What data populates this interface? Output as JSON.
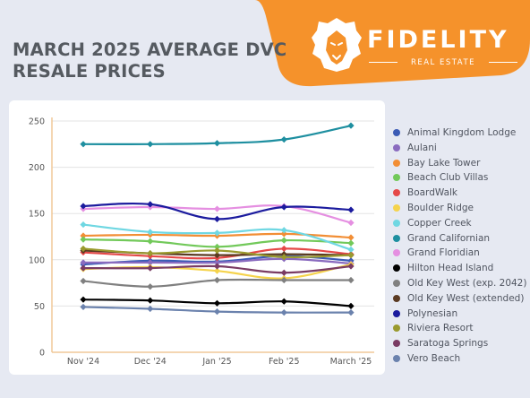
{
  "header": {
    "title_line1": "MARCH 2025 AVERAGE DVC",
    "title_line2": "RESALE PRICES",
    "brand": "FIDELITY",
    "brand_sub": "REAL ESTATE",
    "orange": "#f5922b",
    "logo_icon": "lion-head-icon"
  },
  "chart_data": {
    "type": "line",
    "title": "",
    "xlabel": "",
    "ylabel": "",
    "categories": [
      "Nov '24",
      "Dec '24",
      "Jan '25",
      "Feb '25",
      "March '25"
    ],
    "ylim": [
      0,
      250
    ],
    "yticks": [
      0,
      50,
      100,
      150,
      200,
      250
    ],
    "grid": true,
    "legend": "right",
    "series": [
      {
        "name": "Animal Kingdom Lodge",
        "color": "#3b5bb5",
        "values": [
          95,
          99,
          98,
          104,
          99
        ]
      },
      {
        "name": "Aulani",
        "color": "#8a6bbf",
        "values": [
          97,
          97,
          97,
          101,
          96
        ]
      },
      {
        "name": "Bay Lake Tower",
        "color": "#f28e35",
        "values": [
          126,
          127,
          126,
          128,
          124
        ]
      },
      {
        "name": "Beach Club Villas",
        "color": "#72c95a",
        "values": [
          122,
          120,
          114,
          121,
          118
        ]
      },
      {
        "name": "BoardWalk",
        "color": "#e54848",
        "values": [
          108,
          104,
          102,
          112,
          106
        ]
      },
      {
        "name": "Boulder Ridge",
        "color": "#f5d34c",
        "values": [
          90,
          92,
          88,
          80,
          95
        ]
      },
      {
        "name": "Copper Creek",
        "color": "#6fd7e2",
        "values": [
          138,
          130,
          129,
          132,
          111
        ]
      },
      {
        "name": "Grand Californian",
        "color": "#1e8fa0",
        "values": [
          225,
          225,
          226,
          230,
          245
        ]
      },
      {
        "name": "Grand Floridian",
        "color": "#e58fe1",
        "values": [
          155,
          157,
          155,
          158,
          140
        ]
      },
      {
        "name": "Hilton Head Island",
        "color": "#000000",
        "values": [
          57,
          56,
          53,
          55,
          50
        ]
      },
      {
        "name": "Old Key West (exp. 2042)",
        "color": "#808080",
        "values": [
          77,
          71,
          78,
          78,
          78
        ]
      },
      {
        "name": "Old Key West (extended)",
        "color": "#5a3a22",
        "values": [
          110,
          107,
          105,
          106,
          105
        ]
      },
      {
        "name": "Polynesian",
        "color": "#1b1b9e",
        "values": [
          158,
          160,
          144,
          157,
          154
        ]
      },
      {
        "name": "Riviera Resort",
        "color": "#9a9a2e",
        "values": [
          112,
          107,
          110,
          103,
          105
        ]
      },
      {
        "name": "Saratoga Springs",
        "color": "#7a3b63",
        "values": [
          91,
          91,
          93,
          86,
          93
        ]
      },
      {
        "name": "Vero Beach",
        "color": "#6b82ad",
        "values": [
          49,
          47,
          44,
          43,
          43
        ]
      }
    ]
  }
}
